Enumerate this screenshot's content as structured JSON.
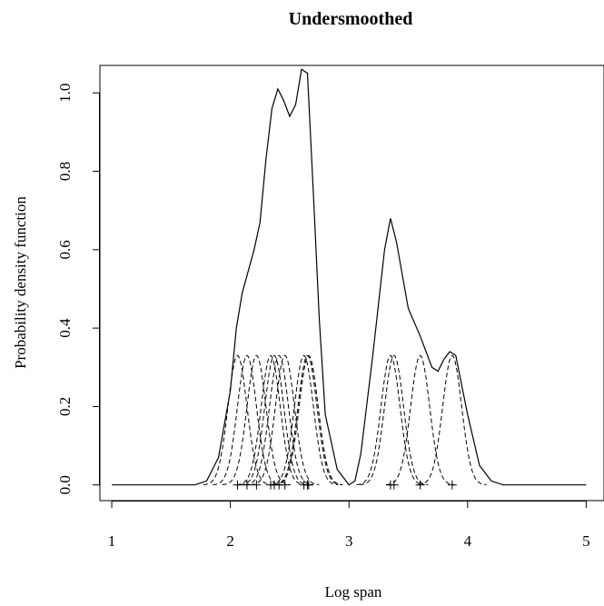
{
  "chart_data": {
    "type": "line",
    "title": "Undersmoothed",
    "xlabel": "Log span",
    "ylabel": "Probability density function",
    "xlim": [
      0.9,
      5.15
    ],
    "ylim": [
      -0.04,
      1.07
    ],
    "x_ticks": [
      "1",
      "2",
      "3",
      "4",
      "5"
    ],
    "y_ticks": [
      "0.0",
      "0.2",
      "0.4",
      "0.6",
      "0.8",
      "1.0"
    ],
    "grid": false,
    "legend": "none",
    "kernel_bandwidth": 0.08,
    "kernel_peak": 0.33,
    "observations": [
      2.06,
      2.14,
      2.22,
      2.34,
      2.37,
      2.41,
      2.46,
      2.62,
      2.65,
      2.66,
      3.35,
      3.38,
      3.6,
      3.87
    ],
    "series": [
      {
        "style": "solid",
        "x": [
          1.0,
          1.7,
          1.8,
          1.9,
          2.0,
          2.05,
          2.1,
          2.2,
          2.25,
          2.3,
          2.35,
          2.4,
          2.45,
          2.5,
          2.55,
          2.6,
          2.65,
          2.7,
          2.75,
          2.8,
          2.9,
          3.0,
          3.05,
          3.1,
          3.2,
          3.3,
          3.35,
          3.4,
          3.5,
          3.6,
          3.7,
          3.75,
          3.8,
          3.85,
          3.9,
          4.0,
          4.1,
          4.2,
          4.3,
          5.0
        ],
        "y": [
          0.0,
          0.0,
          0.01,
          0.07,
          0.24,
          0.4,
          0.49,
          0.6,
          0.67,
          0.83,
          0.96,
          1.01,
          0.98,
          0.94,
          0.97,
          1.06,
          1.05,
          0.74,
          0.42,
          0.18,
          0.04,
          0.0,
          0.01,
          0.08,
          0.33,
          0.6,
          0.68,
          0.62,
          0.45,
          0.38,
          0.3,
          0.29,
          0.32,
          0.34,
          0.33,
          0.18,
          0.05,
          0.01,
          0.0,
          0.0
        ]
      }
    ]
  }
}
